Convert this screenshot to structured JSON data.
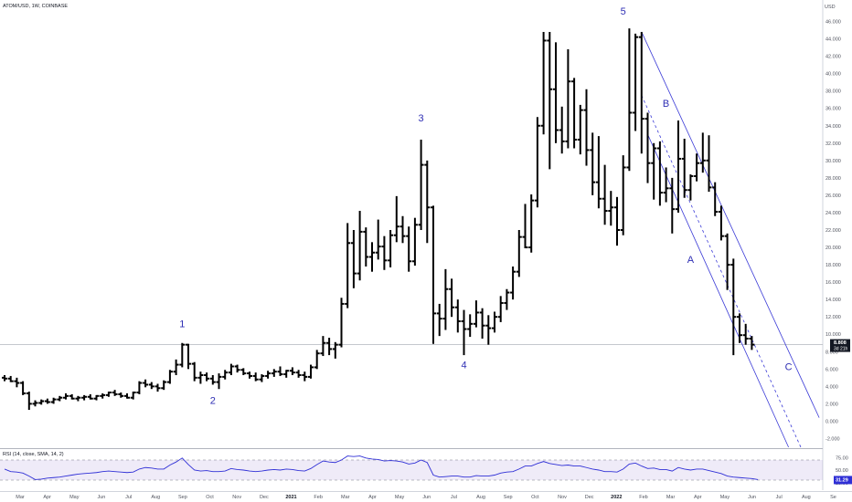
{
  "header": {
    "symbol": "ATOM/USD",
    "interval": "1W",
    "exchange": "COINBASE"
  },
  "chart_data": [
    {
      "type": "bar",
      "subtype": "ohlc",
      "currency": "USD",
      "y_ticks": [
        "46.000",
        "44.000",
        "42.000",
        "40.000",
        "38.000",
        "36.000",
        "34.000",
        "32.000",
        "30.000",
        "28.000",
        "26.000",
        "24.000",
        "22.000",
        "20.000",
        "18.000",
        "16.000",
        "14.000",
        "12.000",
        "10.000",
        "8.000",
        "6.000",
        "4.000",
        "2.000",
        "0.000",
        "-2.000"
      ],
      "ylim": [
        -3,
        47
      ],
      "x_ticks": [
        "Mar",
        "Apr",
        "May",
        "Jun",
        "Jul",
        "Aug",
        "Sep",
        "Oct",
        "Nov",
        "Dec",
        "2021",
        "Feb",
        "Mar",
        "Apr",
        "May",
        "Jun",
        "Jul",
        "Aug",
        "Sep",
        "Oct",
        "Nov",
        "Dec",
        "2022",
        "Feb",
        "Mar",
        "Apr",
        "May",
        "Jun",
        "Jul",
        "Aug",
        "Se"
      ],
      "x_range_weeks": [
        0,
        133
      ],
      "last_price": "8.808",
      "last_price_sub": "3d 21h",
      "last_value": 8.808,
      "ohlc": [
        [
          5.0,
          5.3,
          4.6,
          4.9
        ],
        [
          4.9,
          5.2,
          4.5,
          4.6
        ],
        [
          4.6,
          5.0,
          3.9,
          4.4
        ],
        [
          4.4,
          4.6,
          3.0,
          3.2
        ],
        [
          3.2,
          3.4,
          1.3,
          2.0
        ],
        [
          2.0,
          2.4,
          1.7,
          2.1
        ],
        [
          2.1,
          2.5,
          1.9,
          2.3
        ],
        [
          2.3,
          2.6,
          2.0,
          2.2
        ],
        [
          2.2,
          2.7,
          2.0,
          2.5
        ],
        [
          2.5,
          2.9,
          2.3,
          2.7
        ],
        [
          2.7,
          3.2,
          2.5,
          2.9
        ],
        [
          2.9,
          3.1,
          2.5,
          2.6
        ],
        [
          2.6,
          2.9,
          2.3,
          2.7
        ],
        [
          2.7,
          3.0,
          2.4,
          2.8
        ],
        [
          2.8,
          3.1,
          2.5,
          2.6
        ],
        [
          2.6,
          3.0,
          2.4,
          2.9
        ],
        [
          2.9,
          3.2,
          2.6,
          3.0
        ],
        [
          3.0,
          3.4,
          2.8,
          3.3
        ],
        [
          3.3,
          3.6,
          2.9,
          3.1
        ],
        [
          3.1,
          3.3,
          2.7,
          2.9
        ],
        [
          2.9,
          3.2,
          2.6,
          2.7
        ],
        [
          2.7,
          3.4,
          2.5,
          3.3
        ],
        [
          3.3,
          4.6,
          3.1,
          4.4
        ],
        [
          4.4,
          4.8,
          3.9,
          4.2
        ],
        [
          4.2,
          4.5,
          3.7,
          4.0
        ],
        [
          4.0,
          4.3,
          3.4,
          3.8
        ],
        [
          3.8,
          4.7,
          3.6,
          4.5
        ],
        [
          4.5,
          5.9,
          4.3,
          5.7
        ],
        [
          5.7,
          7.1,
          5.3,
          6.5
        ],
        [
          6.5,
          9.0,
          6.2,
          8.8
        ],
        [
          8.8,
          8.9,
          6.0,
          6.6
        ],
        [
          6.6,
          6.8,
          4.6,
          5.0
        ],
        [
          5.0,
          5.7,
          4.3,
          5.3
        ],
        [
          5.3,
          5.6,
          4.6,
          4.9
        ],
        [
          4.9,
          5.3,
          4.2,
          4.5
        ],
        [
          4.5,
          5.5,
          3.7,
          5.1
        ],
        [
          5.1,
          5.9,
          4.8,
          5.6
        ],
        [
          5.6,
          6.6,
          5.3,
          6.3
        ],
        [
          6.3,
          6.5,
          5.6,
          5.9
        ],
        [
          5.9,
          6.1,
          5.3,
          5.5
        ],
        [
          5.5,
          5.7,
          4.9,
          5.2
        ],
        [
          5.2,
          5.6,
          4.6,
          4.8
        ],
        [
          4.8,
          5.4,
          4.5,
          5.2
        ],
        [
          5.2,
          5.8,
          4.9,
          5.5
        ],
        [
          5.5,
          6.0,
          5.1,
          5.7
        ],
        [
          5.7,
          6.3,
          5.2,
          5.4
        ],
        [
          5.4,
          5.9,
          5.0,
          5.8
        ],
        [
          5.8,
          6.2,
          5.3,
          5.6
        ],
        [
          5.6,
          5.9,
          5.0,
          5.3
        ],
        [
          5.3,
          5.7,
          4.6,
          5.1
        ],
        [
          5.1,
          6.5,
          4.9,
          6.2
        ],
        [
          6.2,
          8.2,
          6.0,
          7.8
        ],
        [
          7.8,
          9.8,
          7.5,
          9.0
        ],
        [
          9.0,
          9.6,
          7.6,
          8.3
        ],
        [
          8.3,
          9.1,
          7.2,
          8.8
        ],
        [
          8.8,
          14.2,
          8.5,
          13.5
        ],
        [
          13.5,
          22.8,
          13.0,
          20.5
        ],
        [
          20.5,
          22.0,
          15.3,
          17.0
        ],
        [
          17.0,
          24.2,
          16.2,
          21.8
        ],
        [
          21.8,
          22.3,
          17.8,
          18.9
        ],
        [
          18.9,
          20.6,
          17.2,
          19.4
        ],
        [
          19.4,
          23.2,
          18.6,
          20.1
        ],
        [
          20.1,
          21.3,
          17.4,
          18.5
        ],
        [
          18.5,
          22.0,
          17.7,
          21.4
        ],
        [
          21.4,
          25.9,
          20.6,
          22.4
        ],
        [
          22.4,
          23.6,
          20.5,
          21.3
        ],
        [
          21.3,
          22.4,
          17.2,
          18.4
        ],
        [
          18.4,
          23.4,
          17.9,
          22.6
        ],
        [
          22.6,
          32.4,
          22.0,
          29.5
        ],
        [
          29.5,
          30.0,
          20.5,
          24.6
        ],
        [
          24.6,
          24.8,
          8.9,
          12.4
        ],
        [
          12.4,
          13.5,
          9.8,
          11.8
        ],
        [
          11.8,
          17.5,
          10.5,
          15.2
        ],
        [
          15.2,
          16.4,
          12.0,
          13.1
        ],
        [
          13.1,
          14.0,
          10.2,
          11.5
        ],
        [
          11.5,
          12.8,
          7.6,
          10.6
        ],
        [
          10.6,
          12.3,
          9.7,
          11.2
        ],
        [
          11.2,
          13.9,
          10.8,
          12.5
        ],
        [
          12.5,
          13.0,
          9.5,
          11.0
        ],
        [
          11.0,
          12.2,
          8.8,
          10.7
        ],
        [
          10.7,
          12.6,
          10.2,
          12.0
        ],
        [
          12.0,
          14.4,
          11.4,
          13.6
        ],
        [
          13.6,
          15.2,
          12.8,
          14.8
        ],
        [
          14.8,
          17.8,
          14.0,
          17.2
        ],
        [
          17.2,
          22.0,
          16.6,
          21.2
        ],
        [
          21.2,
          25.0,
          19.9,
          20.0
        ],
        [
          20.0,
          26.1,
          19.4,
          25.4
        ],
        [
          25.4,
          35.0,
          24.6,
          34.0
        ],
        [
          34.0,
          44.8,
          33.0,
          43.8
        ],
        [
          43.8,
          44.8,
          29.0,
          38.2
        ],
        [
          38.2,
          43.6,
          32.0,
          33.5
        ],
        [
          33.5,
          36.2,
          30.8,
          32.2
        ],
        [
          32.2,
          42.8,
          31.4,
          39.1
        ],
        [
          39.1,
          39.5,
          31.4,
          32.4
        ],
        [
          32.4,
          36.4,
          30.7,
          35.8
        ],
        [
          35.8,
          38.2,
          29.4,
          31.2
        ],
        [
          31.2,
          33.2,
          26.0,
          27.5
        ],
        [
          27.5,
          32.8,
          24.5,
          25.6
        ],
        [
          25.6,
          29.5,
          22.6,
          24.2
        ],
        [
          24.2,
          26.5,
          22.5,
          24.6
        ],
        [
          24.6,
          25.8,
          20.2,
          22.0
        ],
        [
          22.0,
          30.6,
          21.4,
          29.2
        ],
        [
          29.2,
          45.2,
          28.8,
          35.5
        ],
        [
          35.5,
          44.6,
          33.4,
          44.2
        ],
        [
          44.2,
          44.8,
          30.8,
          34.8
        ],
        [
          34.8,
          35.5,
          27.4,
          29.7
        ],
        [
          29.7,
          32.0,
          25.5,
          31.4
        ],
        [
          31.4,
          32.2,
          24.8,
          26.3
        ],
        [
          26.3,
          29.2,
          25.2,
          26.8
        ],
        [
          26.8,
          28.0,
          21.6,
          24.4
        ],
        [
          24.4,
          34.6,
          24.0,
          30.2
        ],
        [
          30.2,
          32.5,
          25.7,
          26.6
        ],
        [
          26.6,
          28.4,
          25.4,
          28.2
        ],
        [
          28.2,
          30.8,
          27.6,
          29.7
        ],
        [
          29.7,
          33.2,
          28.6,
          30.0
        ],
        [
          30.0,
          32.9,
          26.4,
          26.9
        ],
        [
          26.9,
          27.5,
          23.6,
          24.1
        ],
        [
          24.1,
          24.8,
          20.8,
          21.3
        ],
        [
          21.3,
          21.6,
          15.1,
          18.0
        ],
        [
          18.0,
          18.7,
          7.6,
          12.0
        ],
        [
          12.0,
          12.4,
          9.0,
          9.9
        ],
        [
          9.9,
          11.2,
          8.8,
          9.5
        ],
        [
          9.5,
          9.8,
          8.2,
          8.808
        ]
      ],
      "annotations": [
        {
          "label": "1",
          "week": 29,
          "price": 10.8
        },
        {
          "label": "2",
          "week": 34,
          "price": 2.0
        },
        {
          "label": "3",
          "week": 68,
          "price": 34.5
        },
        {
          "label": "4",
          "week": 75,
          "price": 6.1
        },
        {
          "label": "5",
          "week": 101,
          "price": 46.8
        },
        {
          "label": "B",
          "week": 108,
          "price": 36.2
        },
        {
          "label": "A",
          "week": 112,
          "price": 18.2
        },
        {
          "label": "C",
          "week": 128,
          "price": 5.9
        }
      ],
      "channel": {
        "upper": [
          [
            104,
            44.8
          ],
          [
            133,
            0.4
          ]
        ],
        "lower": [
          [
            105,
            33.0
          ],
          [
            128,
            -3.0
          ]
        ],
        "middle": [
          [
            104,
            37.5
          ],
          [
            130,
            -3.0
          ]
        ]
      }
    },
    {
      "type": "line",
      "title": "RSI (14, close, SMA, 14, 2)",
      "y_ticks": [
        "75.00",
        "50.00",
        "25.00"
      ],
      "ylim": [
        10,
        90
      ],
      "band": [
        30,
        70
      ],
      "last_value": "31.29",
      "values": [
        52,
        47,
        46,
        44,
        38,
        31,
        32,
        34,
        35,
        36,
        38,
        40,
        42,
        43,
        44,
        45,
        47,
        48,
        47,
        46,
        45,
        46,
        52,
        55,
        54,
        52,
        52,
        60,
        66,
        74,
        61,
        50,
        48,
        49,
        47,
        47,
        48,
        53,
        51,
        50,
        48,
        47,
        48,
        50,
        51,
        50,
        52,
        51,
        49,
        48,
        53,
        61,
        68,
        66,
        65,
        70,
        78,
        77,
        78,
        74,
        72,
        71,
        68,
        69,
        68,
        66,
        62,
        64,
        70,
        65,
        40,
        36,
        37,
        38,
        38,
        36,
        36,
        39,
        38,
        38,
        40,
        44,
        46,
        47,
        52,
        58,
        58,
        63,
        67,
        63,
        61,
        59,
        60,
        58,
        58,
        55,
        52,
        50,
        47,
        47,
        46,
        52,
        62,
        64,
        58,
        53,
        54,
        51,
        51,
        48,
        55,
        52,
        50,
        52,
        52,
        49,
        46,
        43,
        38,
        36,
        35,
        34,
        33,
        31
      ]
    }
  ]
}
